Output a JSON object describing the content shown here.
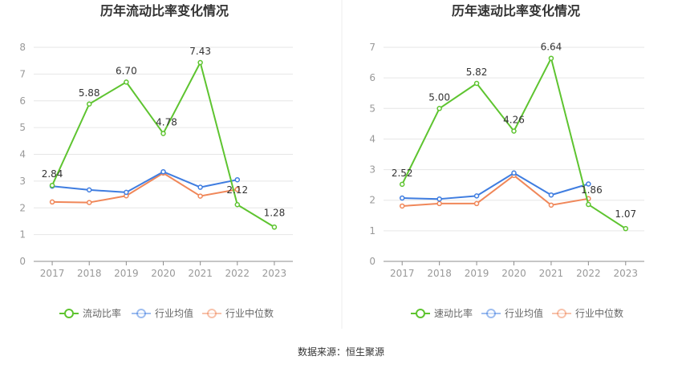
{
  "source_text": "数据来源：恒生聚源",
  "chart_data": [
    {
      "type": "line",
      "title": "历年流动比率变化情况",
      "categories": [
        "2017",
        "2018",
        "2019",
        "2020",
        "2021",
        "2022",
        "2023"
      ],
      "ylim": [
        0,
        8
      ],
      "yticks": [
        0,
        1,
        2,
        3,
        4,
        5,
        6,
        7,
        8
      ],
      "grid": true,
      "legend_position": "bottom",
      "series": [
        {
          "name": "流动比率",
          "color": "#5ec430",
          "values": [
            2.84,
            5.88,
            6.7,
            4.78,
            7.43,
            2.12,
            1.28
          ],
          "labels": [
            "2.84",
            "5.88",
            "6.70",
            "4.78",
            "7.43",
            "2.12",
            "1.28"
          ]
        },
        {
          "name": "行业均值",
          "color": "#3f7de0",
          "values": [
            2.81,
            2.67,
            2.58,
            3.35,
            2.77,
            3.05,
            null
          ]
        },
        {
          "name": "行业中位数",
          "color": "#f08759",
          "values": [
            2.22,
            2.2,
            2.45,
            3.3,
            2.44,
            2.69,
            null
          ]
        }
      ]
    },
    {
      "type": "line",
      "title": "历年速动比率变化情况",
      "categories": [
        "2017",
        "2018",
        "2019",
        "2020",
        "2021",
        "2022",
        "2023"
      ],
      "ylim": [
        0,
        7
      ],
      "yticks": [
        0,
        1,
        2,
        3,
        4,
        5,
        6,
        7
      ],
      "grid": true,
      "legend_position": "bottom",
      "series": [
        {
          "name": "速动比率",
          "color": "#5ec430",
          "values": [
            2.52,
            5.0,
            5.82,
            4.26,
            6.64,
            1.86,
            1.07
          ],
          "labels": [
            "2.52",
            "5.00",
            "5.82",
            "4.26",
            "6.64",
            "1.86",
            "1.07"
          ]
        },
        {
          "name": "行业均值",
          "color": "#3f7de0",
          "values": [
            2.07,
            2.04,
            2.14,
            2.89,
            2.17,
            2.53,
            null
          ]
        },
        {
          "name": "行业中位数",
          "color": "#f08759",
          "values": [
            1.81,
            1.89,
            1.89,
            2.81,
            1.84,
            2.05,
            null
          ]
        }
      ]
    }
  ]
}
